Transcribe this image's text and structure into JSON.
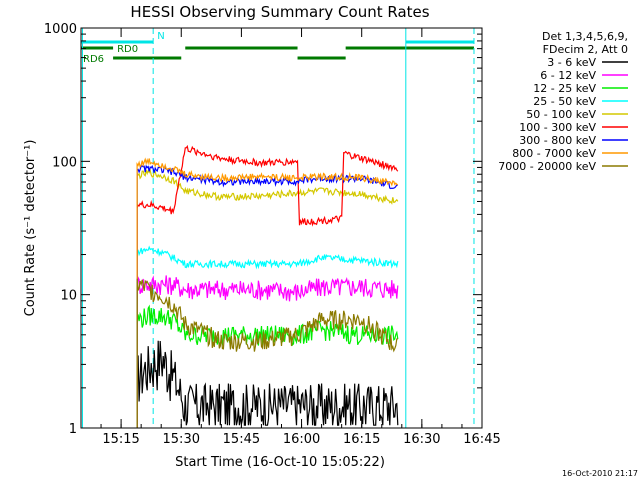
{
  "chart_data": {
    "type": "line",
    "title": "HESSI Observing Summary Count Rates",
    "xlabel": "Start Time (16-Oct-10 15:05:22)",
    "ylabel": "Count Rate (s⁻¹ detector⁻¹)",
    "yscale": "log",
    "ylim": [
      1,
      1000
    ],
    "xlim": [
      "15:05",
      "16:45"
    ],
    "x_ticks": [
      "15:15",
      "15:30",
      "15:45",
      "16:00",
      "16:15",
      "16:30",
      "16:45"
    ],
    "y_ticks": [
      "1",
      "10",
      "100",
      "1000"
    ],
    "legend_header": [
      "Det 1,3,4,5,6,9,",
      "FDecim 2, Att 0"
    ],
    "legend_placement": "right",
    "timestamp": "16-Oct-2010 21:17",
    "vertical_markers": {
      "solid": [
        "15:05:22",
        "16:26"
      ],
      "dashed": [
        "15:23",
        "16:43"
      ]
    },
    "flags": [
      {
        "label": "N",
        "color": "#00e5e5",
        "segments": [
          [
            "15:05",
            "15:23"
          ],
          [
            "16:26",
            "16:43"
          ]
        ]
      },
      {
        "label": "RD0",
        "color": "#007a00",
        "segments": [
          [
            "15:05",
            "15:13"
          ],
          [
            "15:31",
            "15:59"
          ],
          [
            "16:11",
            "16:43"
          ]
        ]
      },
      {
        "label": "RD6",
        "color": "#007a00",
        "segments": [
          [
            "15:13",
            "15:30"
          ],
          [
            "15:59",
            "16:11"
          ]
        ]
      }
    ],
    "series": [
      {
        "name": "3 - 6 keV",
        "color": "#000000",
        "points": [
          [
            "15:19",
            2.5
          ],
          [
            "15:22",
            3
          ],
          [
            "15:25",
            3.5
          ],
          [
            "15:28",
            2.5
          ],
          [
            "15:31",
            1.5
          ],
          [
            "15:40",
            1.5
          ],
          [
            "15:50",
            1.5
          ],
          [
            "15:59",
            1.5
          ],
          [
            "16:05",
            1.5
          ],
          [
            "16:15",
            1.5
          ],
          [
            "16:24",
            1.5
          ]
        ]
      },
      {
        "name": "6 - 12 keV",
        "color": "#ff00ff",
        "points": [
          [
            "15:19",
            12
          ],
          [
            "15:22",
            12
          ],
          [
            "15:25",
            12
          ],
          [
            "15:28",
            12
          ],
          [
            "15:31",
            11
          ],
          [
            "15:40",
            11
          ],
          [
            "15:50",
            11
          ],
          [
            "15:59",
            10.5
          ],
          [
            "16:05",
            11.5
          ],
          [
            "16:15",
            11.5
          ],
          [
            "16:24",
            11
          ]
        ]
      },
      {
        "name": "12 - 25 keV",
        "color": "#00ee00",
        "points": [
          [
            "15:19",
            6.5
          ],
          [
            "15:22",
            7
          ],
          [
            "15:25",
            7
          ],
          [
            "15:28",
            6.5
          ],
          [
            "15:31",
            5
          ],
          [
            "15:40",
            5
          ],
          [
            "15:50",
            5
          ],
          [
            "15:59",
            5
          ],
          [
            "16:05",
            5.5
          ],
          [
            "16:15",
            5
          ],
          [
            "16:24",
            5
          ]
        ]
      },
      {
        "name": "25 - 50 keV",
        "color": "#00ffff",
        "points": [
          [
            "15:19",
            21
          ],
          [
            "15:22",
            22
          ],
          [
            "15:25",
            21
          ],
          [
            "15:28",
            19
          ],
          [
            "15:31",
            17
          ],
          [
            "15:40",
            17
          ],
          [
            "15:50",
            17
          ],
          [
            "15:59",
            17
          ],
          [
            "16:05",
            19
          ],
          [
            "16:15",
            18
          ],
          [
            "16:24",
            17
          ]
        ]
      },
      {
        "name": "50 - 100 keV",
        "color": "#d4c800",
        "points": [
          [
            "15:19",
            78
          ],
          [
            "15:22",
            82
          ],
          [
            "15:25",
            78
          ],
          [
            "15:28",
            72
          ],
          [
            "15:31",
            60
          ],
          [
            "15:40",
            54
          ],
          [
            "15:50",
            55
          ],
          [
            "15:59",
            58
          ],
          [
            "16:05",
            60
          ],
          [
            "16:15",
            57
          ],
          [
            "16:24",
            50
          ]
        ]
      },
      {
        "name": "100 - 300 keV",
        "color": "#ff0000",
        "points": [
          [
            "15:19",
            47
          ],
          [
            "15:22",
            47
          ],
          [
            "15:25",
            45
          ],
          [
            "15:28",
            42
          ],
          [
            "15:31",
            125
          ],
          [
            "15:40",
            105
          ],
          [
            "15:50",
            97
          ],
          [
            "15:59",
            100
          ],
          [
            "15:59.5",
            35
          ],
          [
            "16:05",
            36
          ],
          [
            "16:10",
            37
          ],
          [
            "16:10.5",
            115
          ],
          [
            "16:15",
            105
          ],
          [
            "16:24",
            88
          ]
        ]
      },
      {
        "name": "300 - 800 keV",
        "color": "#0000ff",
        "points": [
          [
            "15:19",
            88
          ],
          [
            "15:22",
            88
          ],
          [
            "15:25",
            86
          ],
          [
            "15:28",
            83
          ],
          [
            "15:31",
            76
          ],
          [
            "15:40",
            70
          ],
          [
            "15:50",
            71
          ],
          [
            "15:59",
            71
          ],
          [
            "16:05",
            75
          ],
          [
            "16:15",
            74
          ],
          [
            "16:24",
            64
          ]
        ]
      },
      {
        "name": "800 - 7000 keV",
        "color": "#ff9900",
        "points": [
          [
            "15:19",
            95
          ],
          [
            "15:22",
            100
          ],
          [
            "15:25",
            95
          ],
          [
            "15:28",
            88
          ],
          [
            "15:31",
            80
          ],
          [
            "15:40",
            75
          ],
          [
            "15:50",
            77
          ],
          [
            "15:59",
            75
          ],
          [
            "16:05",
            77
          ],
          [
            "16:15",
            75
          ],
          [
            "16:24",
            68
          ]
        ]
      },
      {
        "name": "7000 - 20000 keV",
        "color": "#8b7a00",
        "points": [
          [
            "15:19",
            12
          ],
          [
            "15:22",
            11
          ],
          [
            "15:25",
            10
          ],
          [
            "15:28",
            8.5
          ],
          [
            "15:31",
            6
          ],
          [
            "15:40",
            4.5
          ],
          [
            "15:50",
            4.5
          ],
          [
            "15:59",
            5
          ],
          [
            "16:05",
            6.5
          ],
          [
            "16:15",
            6.5
          ],
          [
            "16:24",
            4
          ]
        ]
      }
    ]
  }
}
